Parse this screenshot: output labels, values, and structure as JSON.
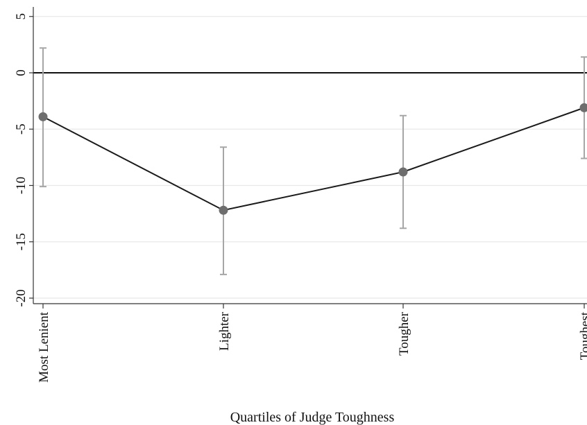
{
  "chart_data": {
    "type": "line",
    "title": "",
    "xlabel": "Quartiles of Judge Toughness",
    "ylabel": "",
    "categories": [
      "Most Lenient",
      "Lighter",
      "Tougher",
      "Toughest"
    ],
    "series": [
      {
        "values": [
          -3.9,
          -12.2,
          -8.8,
          -3.1
        ],
        "ci_low": [
          -10.1,
          -17.9,
          -13.8,
          -7.6
        ],
        "ci_high": [
          2.2,
          -6.6,
          -3.8,
          1.4
        ]
      }
    ],
    "yticks": [
      5,
      0,
      -5,
      -10,
      -15,
      -20
    ],
    "ylim": [
      -20.5,
      5.5
    ],
    "reference_line": 0,
    "grid": true,
    "colors": {
      "line": "#1a1a1a",
      "marker": "#6e6e6e",
      "error_bar": "#a6a6a6",
      "grid": "#e8e8e8",
      "axis": "#333333"
    }
  }
}
